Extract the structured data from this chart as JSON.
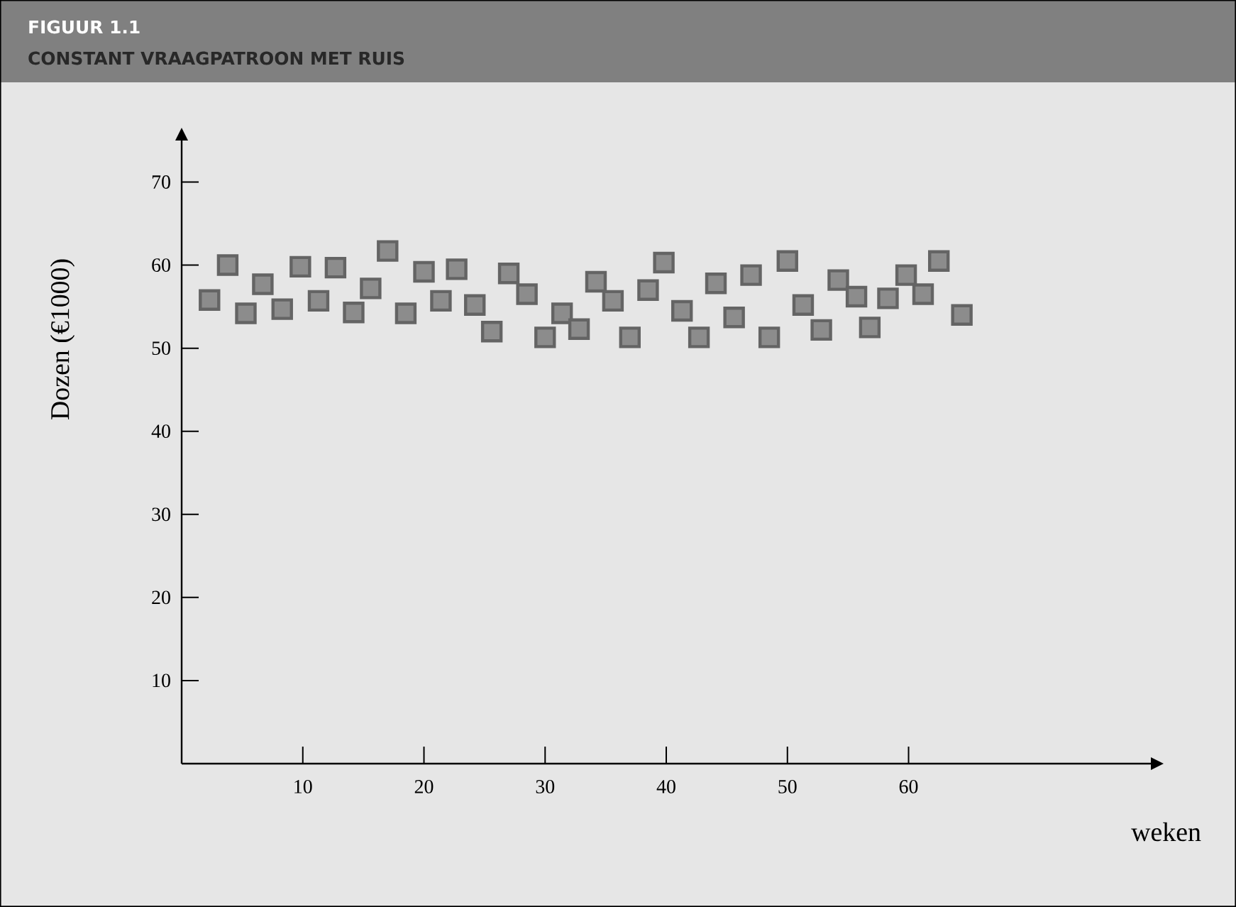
{
  "chart_data": {
    "type": "scatter",
    "title": "FIGUUR 1.1",
    "subtitle": "CONSTANT VRAAGPATROON MET RUIS",
    "xlabel": "weken",
    "ylabel": "Dozen (€1000)",
    "x": [
      2.3,
      3.8,
      5.3,
      6.7,
      8.3,
      9.8,
      11.3,
      12.7,
      14.2,
      15.6,
      17,
      18.5,
      20,
      21.4,
      22.7,
      24.2,
      25.6,
      27,
      28.5,
      30,
      31.4,
      32.8,
      34.2,
      35.6,
      37,
      38.5,
      39.8,
      41.3,
      42.7,
      44.1,
      45.6,
      47,
      48.5,
      50,
      51.3,
      52.8,
      54.2,
      55.7,
      56.8,
      58.3,
      59.8,
      61.2,
      62.5,
      64.4
    ],
    "values": [
      55.8,
      60,
      54.2,
      57.7,
      54.7,
      59.8,
      55.7,
      59.7,
      54.3,
      57.2,
      61.7,
      54.2,
      59.2,
      55.7,
      59.5,
      55.2,
      52,
      59,
      56.5,
      51.3,
      54.2,
      52.3,
      58,
      55.7,
      51.3,
      57,
      60.3,
      54.5,
      51.3,
      57.8,
      53.7,
      58.8,
      51.3,
      60.5,
      55.2,
      52.2,
      58.2,
      56.2,
      52.5,
      56,
      58.8,
      56.5,
      60.5,
      54
    ],
    "color": "#8c8c8c",
    "marker": "square",
    "xlim": [
      0,
      80
    ],
    "ylim": [
      0,
      75
    ],
    "xticks": [
      10,
      20,
      30,
      40,
      50,
      60
    ],
    "yticks": [
      10,
      20,
      30,
      40,
      50,
      60,
      70
    ]
  }
}
